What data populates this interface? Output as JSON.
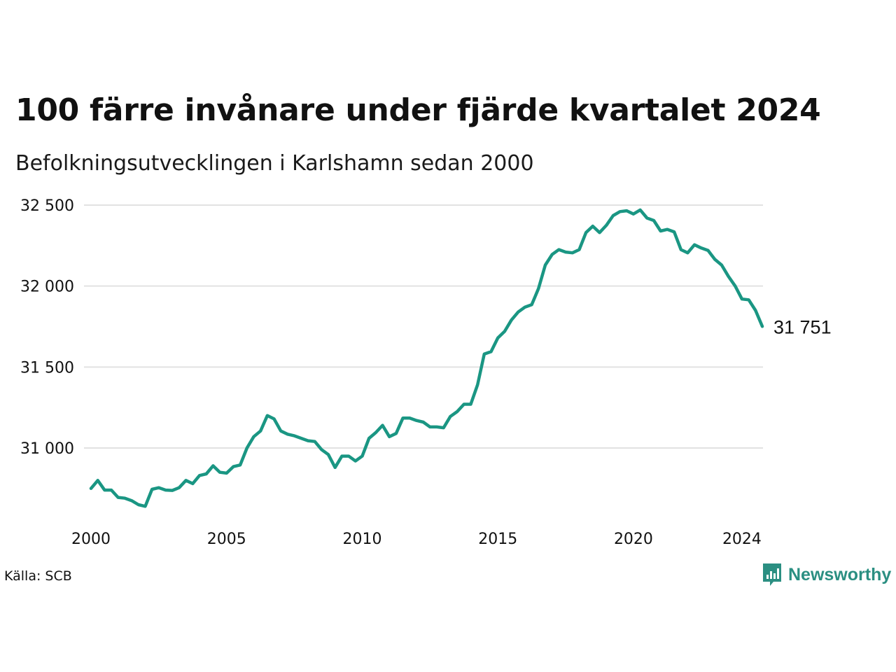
{
  "title": "100 färre invånare under fjärde kvartalet 2024",
  "subtitle": "Befolkningsutvecklingen i Karlshamn sedan 2000",
  "source": "Källa: SCB",
  "brand": {
    "name": "Newsworthy",
    "icon": "newsworthy-logo-icon",
    "color": "#2b8f82"
  },
  "chart_data": {
    "type": "line",
    "line_color": "#1a9683",
    "grid": true,
    "ylim": [
      30600,
      32500
    ],
    "y_ticks": [
      {
        "value": 31000,
        "label": "31 000"
      },
      {
        "value": 31500,
        "label": "31 500"
      },
      {
        "value": 32000,
        "label": "32 000"
      },
      {
        "value": 32500,
        "label": "32 500"
      }
    ],
    "x_ticks": [
      {
        "value": 2000,
        "label": "2000"
      },
      {
        "value": 2005,
        "label": "2005"
      },
      {
        "value": 2010,
        "label": "2010"
      },
      {
        "value": 2015,
        "label": "2015"
      },
      {
        "value": 2020,
        "label": "2020"
      },
      {
        "value": 2024,
        "label": "2024"
      }
    ],
    "end_label": "31 751",
    "x": [
      2000.0,
      2000.25,
      2000.5,
      2000.75,
      2001.0,
      2001.25,
      2001.5,
      2001.75,
      2002.0,
      2002.25,
      2002.5,
      2002.75,
      2003.0,
      2003.25,
      2003.5,
      2003.75,
      2004.0,
      2004.25,
      2004.5,
      2004.75,
      2005.0,
      2005.25,
      2005.5,
      2005.75,
      2006.0,
      2006.25,
      2006.5,
      2006.75,
      2007.0,
      2007.25,
      2007.5,
      2007.75,
      2008.0,
      2008.25,
      2008.5,
      2008.75,
      2009.0,
      2009.25,
      2009.5,
      2009.75,
      2010.0,
      2010.25,
      2010.5,
      2010.75,
      2011.0,
      2011.25,
      2011.5,
      2011.75,
      2012.0,
      2012.25,
      2012.5,
      2012.75,
      2013.0,
      2013.25,
      2013.5,
      2013.75,
      2014.0,
      2014.25,
      2014.5,
      2014.75,
      2015.0,
      2015.25,
      2015.5,
      2015.75,
      2016.0,
      2016.25,
      2016.5,
      2016.75,
      2017.0,
      2017.25,
      2017.5,
      2017.75,
      2018.0,
      2018.25,
      2018.5,
      2018.75,
      2019.0,
      2019.25,
      2019.5,
      2019.75,
      2020.0,
      2020.25,
      2020.5,
      2020.75,
      2021.0,
      2021.25,
      2021.5,
      2021.75,
      2022.0,
      2022.25,
      2022.5,
      2022.75,
      2023.0,
      2023.25,
      2023.5,
      2023.75,
      2024.0,
      2024.25,
      2024.5,
      2024.75
    ],
    "series": [
      {
        "values": [
          30750,
          30800,
          30740,
          30740,
          30695,
          30690,
          30675,
          30650,
          30640,
          30745,
          30755,
          30740,
          30738,
          30755,
          30800,
          30780,
          30830,
          30840,
          30890,
          30850,
          30845,
          30885,
          30895,
          31000,
          31070,
          31105,
          31200,
          31180,
          31105,
          31085,
          31075,
          31060,
          31045,
          31040,
          30990,
          30960,
          30880,
          30950,
          30950,
          30920,
          30950,
          31060,
          31095,
          31140,
          31070,
          31090,
          31185,
          31185,
          31170,
          31160,
          31130,
          31130,
          31125,
          31195,
          31225,
          31270,
          31270,
          31390,
          31580,
          31595,
          31680,
          31720,
          31790,
          31840,
          31870,
          31885,
          31985,
          32130,
          32195,
          32225,
          32210,
          32205,
          32225,
          32330,
          32370,
          32330,
          32375,
          32435,
          32460,
          32465,
          32445,
          32470,
          32420,
          32405,
          32340,
          32350,
          32335,
          32225,
          32205,
          32255,
          32235,
          32220,
          32165,
          32130,
          32060,
          32000,
          31920,
          31915,
          31850,
          31751
        ]
      }
    ]
  }
}
